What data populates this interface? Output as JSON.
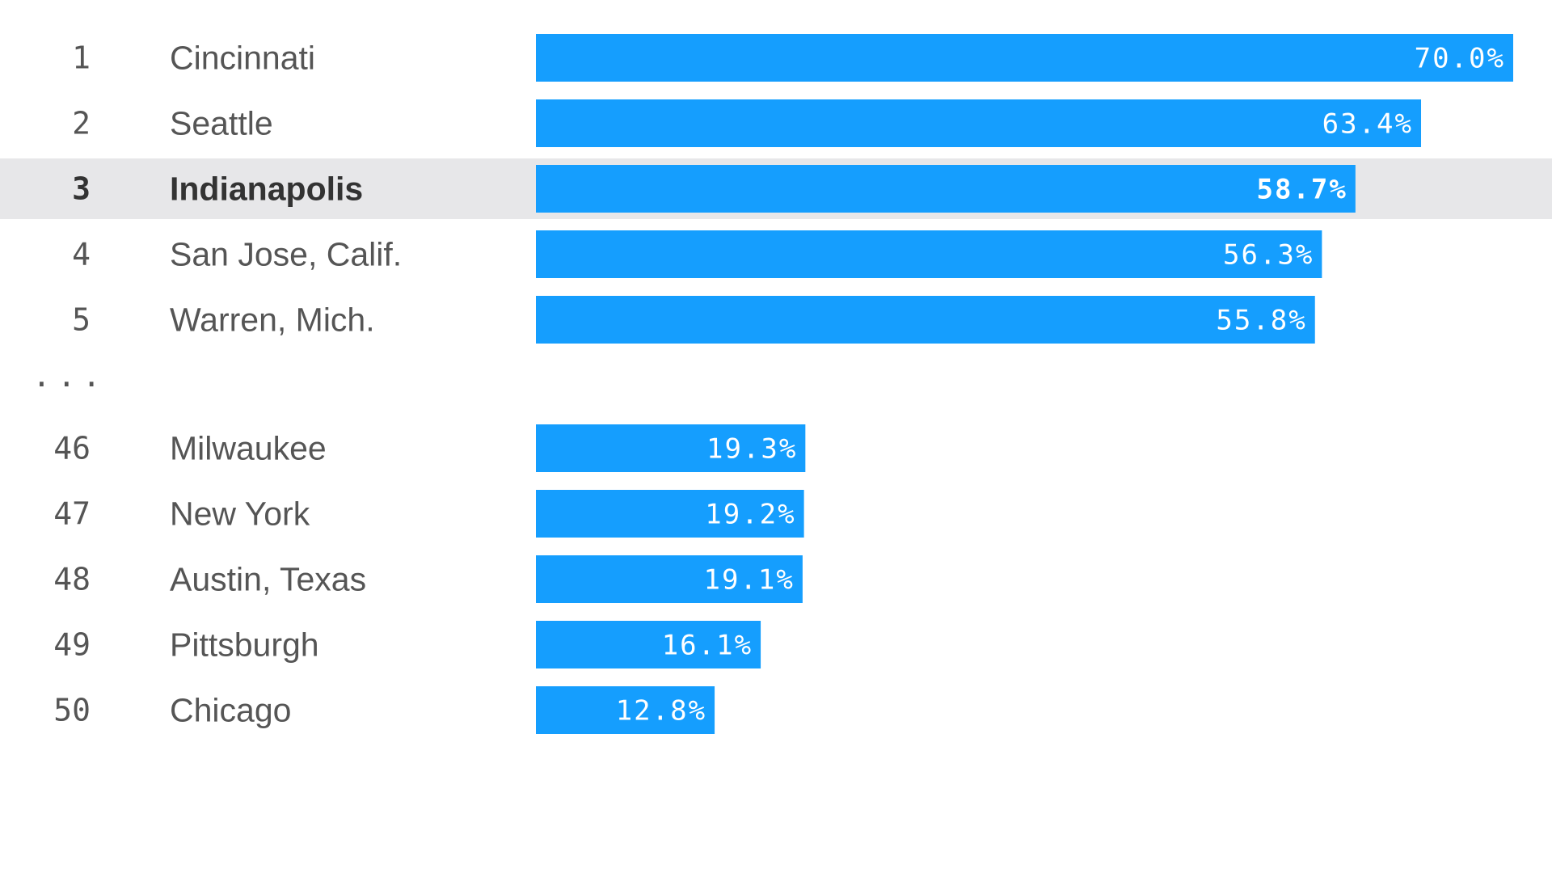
{
  "chart_data": {
    "type": "bar",
    "orientation": "horizontal",
    "title": "",
    "xlabel": "",
    "ylabel": "",
    "xlim": [
      0,
      70
    ],
    "grid": false,
    "bar_color": "#159efe",
    "highlight_color": "#e7e7e9",
    "ellipsis": "...",
    "top": [
      {
        "rank": "1",
        "city": "Cincinnati",
        "value": 70.0,
        "label": "70.0%"
      },
      {
        "rank": "2",
        "city": "Seattle",
        "value": 63.4,
        "label": "63.4%"
      },
      {
        "rank": "3",
        "city": "Indianapolis",
        "value": 58.7,
        "label": "58.7%",
        "highlight": true
      },
      {
        "rank": "4",
        "city": "San Jose, Calif.",
        "value": 56.3,
        "label": "56.3%"
      },
      {
        "rank": "5",
        "city": "Warren, Mich.",
        "value": 55.8,
        "label": "55.8%"
      }
    ],
    "bottom": [
      {
        "rank": "46",
        "city": "Milwaukee",
        "value": 19.3,
        "label": "19.3%"
      },
      {
        "rank": "47",
        "city": "New York",
        "value": 19.2,
        "label": "19.2%"
      },
      {
        "rank": "48",
        "city": "Austin, Texas",
        "value": 19.1,
        "label": "19.1%"
      },
      {
        "rank": "49",
        "city": "Pittsburgh",
        "value": 16.1,
        "label": "16.1%"
      },
      {
        "rank": "50",
        "city": "Chicago",
        "value": 12.8,
        "label": "12.8%"
      }
    ]
  }
}
